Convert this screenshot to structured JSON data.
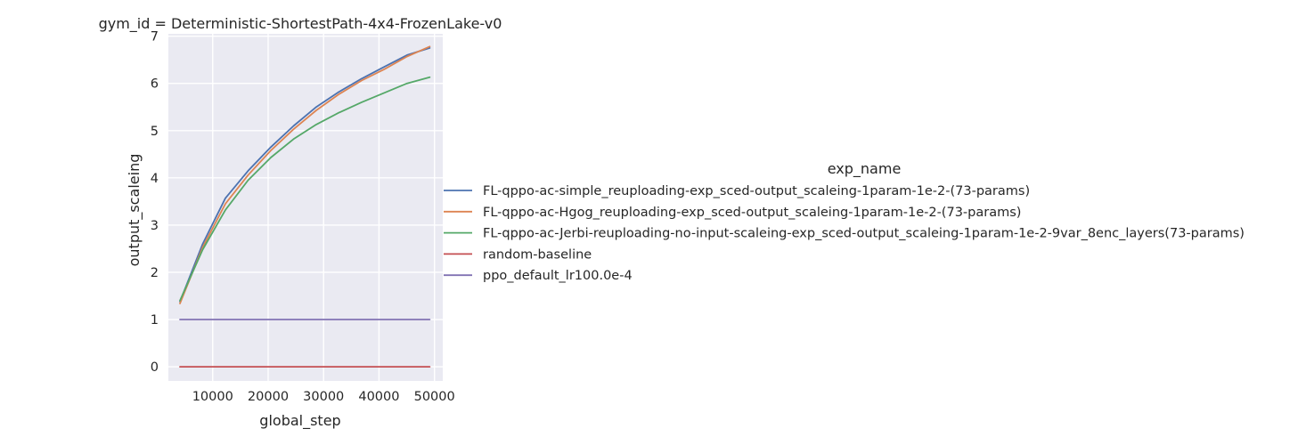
{
  "chart_data": {
    "type": "line",
    "title": "gym_id = Deterministic-ShortestPath-4x4-FrozenLake-v0",
    "xlabel": "global_step",
    "ylabel": "output_scaleing",
    "xlim": [
      2000,
      51500
    ],
    "ylim": [
      -0.3,
      7.05
    ],
    "xticks": [
      10000,
      20000,
      30000,
      40000,
      50000
    ],
    "yticks": [
      0,
      1,
      2,
      3,
      4,
      5,
      6,
      7
    ],
    "grid": true,
    "background": "#eaeaf2",
    "legend": {
      "title": "exp_name",
      "placement": "right"
    },
    "series": [
      {
        "name": "FL-qppo-ac-simple_reuploading-exp_sced-output_scaleing-1param-1e-2-(73-params)",
        "color": "#4c72b0",
        "x": [
          4096,
          8192,
          12288,
          16384,
          20480,
          24576,
          28672,
          32768,
          36864,
          40960,
          45056,
          49152
        ],
        "y": [
          1.38,
          2.6,
          3.57,
          4.15,
          4.65,
          5.1,
          5.5,
          5.82,
          6.1,
          6.35,
          6.6,
          6.75
        ]
      },
      {
        "name": "FL-qppo-ac-Hgog_reuploading-exp_sced-output_scaleing-1param-1e-2-(73-params)",
        "color": "#dd8452",
        "x": [
          4096,
          8192,
          12288,
          16384,
          20480,
          24576,
          28672,
          32768,
          36864,
          40960,
          45056,
          49152
        ],
        "y": [
          1.34,
          2.53,
          3.45,
          4.06,
          4.58,
          5.03,
          5.43,
          5.77,
          6.06,
          6.3,
          6.57,
          6.78
        ]
      },
      {
        "name": "FL-qppo-ac-Jerbi-reuploading-no-input-scaleing-exp_sced-output_scaleing-1param-1e-2-9var_8enc_layers(73-params)",
        "color": "#55a868",
        "x": [
          4096,
          8192,
          12288,
          16384,
          20480,
          24576,
          28672,
          32768,
          36864,
          40960,
          45056,
          49152
        ],
        "y": [
          1.4,
          2.48,
          3.32,
          3.95,
          4.43,
          4.82,
          5.13,
          5.38,
          5.6,
          5.8,
          6.0,
          6.13
        ]
      },
      {
        "name": "random-baseline",
        "color": "#c44e52",
        "x": [
          4096,
          49152
        ],
        "y": [
          0,
          0
        ]
      },
      {
        "name": "ppo_default_lr100.0e-4",
        "color": "#8172b3",
        "x": [
          4096,
          49152
        ],
        "y": [
          1,
          1
        ]
      }
    ]
  }
}
